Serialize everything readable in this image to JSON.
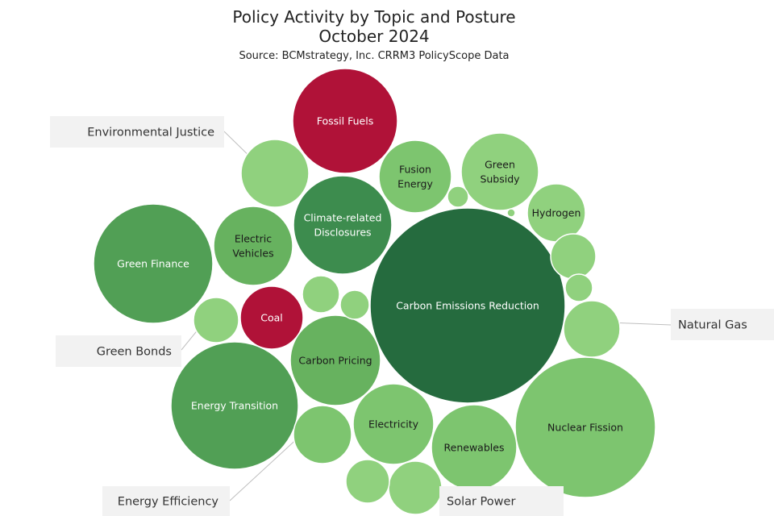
{
  "title_line1": "Policy Activity by Topic and Posture",
  "title_line2": "October 2024",
  "subtitle": "Source: BCMstrategy, Inc. CRRM3 PolicyScope Data",
  "chart_data": {
    "type": "bubble",
    "title": "Policy Activity by Topic and Posture",
    "subtitle": "October 2024",
    "source": "Source: BCMstrategy, Inc. CRRM3 PolicyScope Data",
    "colors": {
      "negative": "#b01238",
      "very_dark_green": "#256b3e",
      "dark_green": "#3d8c4e",
      "medium_green": "#519f55",
      "green": "#67b25f",
      "light_green": "#7dc56f",
      "pale_green": "#90d17e",
      "callout_bg": "#f2f2f2",
      "leader": "#bfbfbf"
    },
    "bubbles": [
      {
        "label": "Fossil Fuels",
        "size": 65,
        "color": "#b01238",
        "show_label": true
      },
      {
        "label": "Environmental Justice",
        "size": 42,
        "color": "#90d17e",
        "show_label": false
      },
      {
        "label": "Fusion Energy",
        "size": 45,
        "color": "#7dc56f",
        "show_label": true
      },
      {
        "label": "Green Subsidy",
        "size": 48,
        "color": "#90d17e",
        "show_label": true
      },
      {
        "label": "Climate-related Disclosures",
        "size": 61,
        "color": "#3d8c4e",
        "show_label": true
      },
      {
        "label": "Hydrogen",
        "size": 36,
        "color": "#90d17e",
        "show_label": true
      },
      {
        "label": "Green Finance",
        "size": 74,
        "color": "#519f55",
        "show_label": true
      },
      {
        "label": "Electric Vehicles",
        "size": 49,
        "color": "#67b25f",
        "show_label": true
      },
      {
        "label": "Carbon Emissions Reduction",
        "size": 121,
        "color": "#256b3e",
        "show_label": true
      },
      {
        "label": "Coal",
        "size": 39,
        "color": "#b01238",
        "show_label": true
      },
      {
        "label": "Green Bonds",
        "size": 28,
        "color": "#90d17e",
        "show_label": false
      },
      {
        "label": "Natural Gas",
        "size": 35,
        "color": "#90d17e",
        "show_label": false
      },
      {
        "label": "Carbon Pricing",
        "size": 56,
        "color": "#67b25f",
        "show_label": true
      },
      {
        "label": "Energy Transition",
        "size": 79,
        "color": "#519f55",
        "show_label": true
      },
      {
        "label": "Electricity",
        "size": 50,
        "color": "#7dc56f",
        "show_label": true
      },
      {
        "label": "Nuclear Fission",
        "size": 87,
        "color": "#7dc56f",
        "show_label": true
      },
      {
        "label": "Renewables",
        "size": 53,
        "color": "#7dc56f",
        "show_label": true
      },
      {
        "label": "Energy Efficiency",
        "size": 36,
        "color": "#7dc56f",
        "show_label": false
      },
      {
        "label": "Solar Power",
        "size": 33,
        "color": "#90d17e",
        "show_label": false
      },
      {
        "label": "",
        "size": 13,
        "color": "#90d17e",
        "show_label": false
      },
      {
        "label": "",
        "size": 5,
        "color": "#90d17e",
        "show_label": false
      },
      {
        "label": "",
        "size": 23,
        "color": "#90d17e",
        "show_label": false
      },
      {
        "label": "",
        "size": 18,
        "color": "#90d17e",
        "show_label": false
      },
      {
        "label": "",
        "size": 28,
        "color": "#90d17e",
        "show_label": false
      },
      {
        "label": "",
        "size": 17,
        "color": "#90d17e",
        "show_label": false
      },
      {
        "label": "",
        "size": 27,
        "color": "#90d17e",
        "show_label": false
      }
    ],
    "callouts": [
      "Environmental Justice",
      "Green Bonds",
      "Natural Gas",
      "Energy Efficiency",
      "Solar Power"
    ]
  }
}
